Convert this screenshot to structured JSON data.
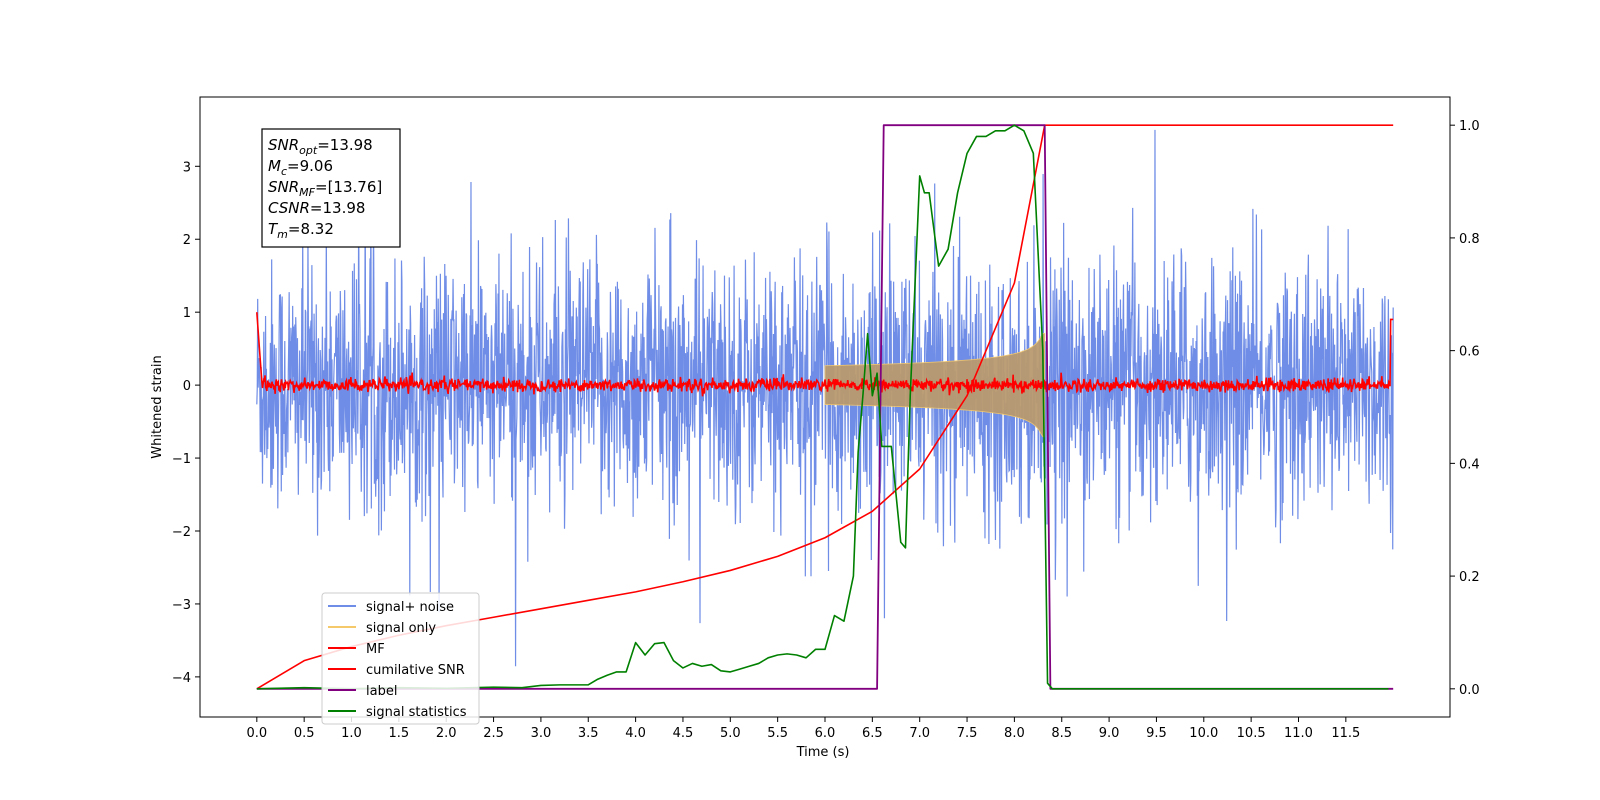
{
  "chart_data": {
    "type": "line",
    "title": "",
    "xlabel": "Time (s)",
    "ylabel": "Whitened strain",
    "xlim": [
      -0.6,
      12.6
    ],
    "ylim": [
      -4.55,
      3.95
    ],
    "y2lim": [
      -0.05,
      1.05
    ],
    "x_ticks": [
      "0.0",
      "0.5",
      "1.0",
      "1.5",
      "2.0",
      "2.5",
      "3.0",
      "3.5",
      "4.0",
      "4.5",
      "5.0",
      "5.5",
      "6.0",
      "6.5",
      "7.0",
      "7.5",
      "8.0",
      "8.5",
      "9.0",
      "9.5",
      "10.0",
      "10.5",
      "11.0",
      "11.5"
    ],
    "y_ticks": [
      "3",
      "2",
      "1",
      "0",
      "−1",
      "−2",
      "−3",
      "−4"
    ],
    "y2_ticks": [
      "1.0",
      "0.8",
      "0.6",
      "0.4",
      "0.2",
      "0.0"
    ],
    "grid": false,
    "legend_position": "lower-left",
    "series": [
      {
        "name": "signal+ noise",
        "color": "#6f8de6",
        "style": "noise",
        "amplitude_range": [
          -2.5,
          2.5
        ],
        "x_range": [
          0.0,
          12.0
        ]
      },
      {
        "name": "signal only",
        "color": "#f5c96a",
        "style": "chirp",
        "x_range": [
          6.0,
          8.32
        ],
        "peak_amplitude": 0.95
      },
      {
        "name": "MF",
        "color": "#ff0000",
        "style": "noise",
        "amplitude_range": [
          -0.1,
          0.12
        ],
        "x_range": [
          0.0,
          12.0
        ]
      },
      {
        "name": "cumilative SNR",
        "color": "#ff0000",
        "axis": "right",
        "x": [
          0.0,
          0.5,
          1.0,
          1.5,
          2.0,
          2.5,
          3.0,
          3.5,
          4.0,
          4.5,
          5.0,
          5.5,
          6.0,
          6.5,
          7.0,
          7.5,
          8.0,
          8.32,
          12.0
        ],
        "values": [
          0.0,
          0.05,
          0.075,
          0.095,
          0.112,
          0.127,
          0.142,
          0.157,
          0.172,
          0.19,
          0.21,
          0.235,
          0.268,
          0.315,
          0.39,
          0.52,
          0.72,
          1.0,
          1.0
        ]
      },
      {
        "name": "label",
        "color": "#800080",
        "axis": "right",
        "x": [
          0.0,
          6.55,
          6.62,
          8.32,
          8.38,
          12.0
        ],
        "values": [
          0.0,
          0.0,
          1.0,
          1.0,
          0.0,
          0.0
        ]
      },
      {
        "name": "signal statistics",
        "color": "#008000",
        "axis": "right",
        "x": [
          0.0,
          0.5,
          1.0,
          1.5,
          2.0,
          2.5,
          2.8,
          3.0,
          3.2,
          3.5,
          3.6,
          3.7,
          3.8,
          3.9,
          4.0,
          4.1,
          4.2,
          4.3,
          4.4,
          4.5,
          4.6,
          4.7,
          4.8,
          4.9,
          5.0,
          5.1,
          5.2,
          5.3,
          5.4,
          5.5,
          5.6,
          5.7,
          5.8,
          5.9,
          6.0,
          6.1,
          6.2,
          6.3,
          6.35,
          6.4,
          6.45,
          6.5,
          6.55,
          6.6,
          6.7,
          6.8,
          6.85,
          6.9,
          7.0,
          7.05,
          7.1,
          7.2,
          7.3,
          7.4,
          7.5,
          7.6,
          7.7,
          7.8,
          7.9,
          8.0,
          8.1,
          8.2,
          8.3,
          8.35,
          8.4,
          8.5,
          9.0,
          10.0,
          11.0,
          11.95
        ],
        "values": [
          0.0,
          0.002,
          0.0,
          0.002,
          0.001,
          0.003,
          0.002,
          0.006,
          0.007,
          0.007,
          0.017,
          0.024,
          0.03,
          0.03,
          0.082,
          0.06,
          0.08,
          0.082,
          0.05,
          0.037,
          0.045,
          0.04,
          0.043,
          0.032,
          0.03,
          0.035,
          0.04,
          0.045,
          0.055,
          0.06,
          0.062,
          0.06,
          0.055,
          0.07,
          0.07,
          0.13,
          0.12,
          0.2,
          0.42,
          0.52,
          0.63,
          0.52,
          0.56,
          0.43,
          0.43,
          0.26,
          0.25,
          0.52,
          0.91,
          0.88,
          0.88,
          0.75,
          0.78,
          0.88,
          0.95,
          0.98,
          0.98,
          0.99,
          0.99,
          1.0,
          0.99,
          0.95,
          0.6,
          0.01,
          0.0,
          0.0,
          0.0,
          0.0,
          0.0,
          0.0
        ]
      }
    ],
    "annotation": {
      "lines": [
        {
          "name": "SNR",
          "sub": "opt",
          "value": "=13.98"
        },
        {
          "name": "M",
          "sub": "c",
          "value": "=9.06"
        },
        {
          "name": "SNR",
          "sub": "MF",
          "value": "=[13.76]"
        },
        {
          "name": "CSNR",
          "sub": "",
          "value": "=13.98"
        },
        {
          "name": "T",
          "sub": "m",
          "value": "=8.32"
        }
      ]
    }
  }
}
